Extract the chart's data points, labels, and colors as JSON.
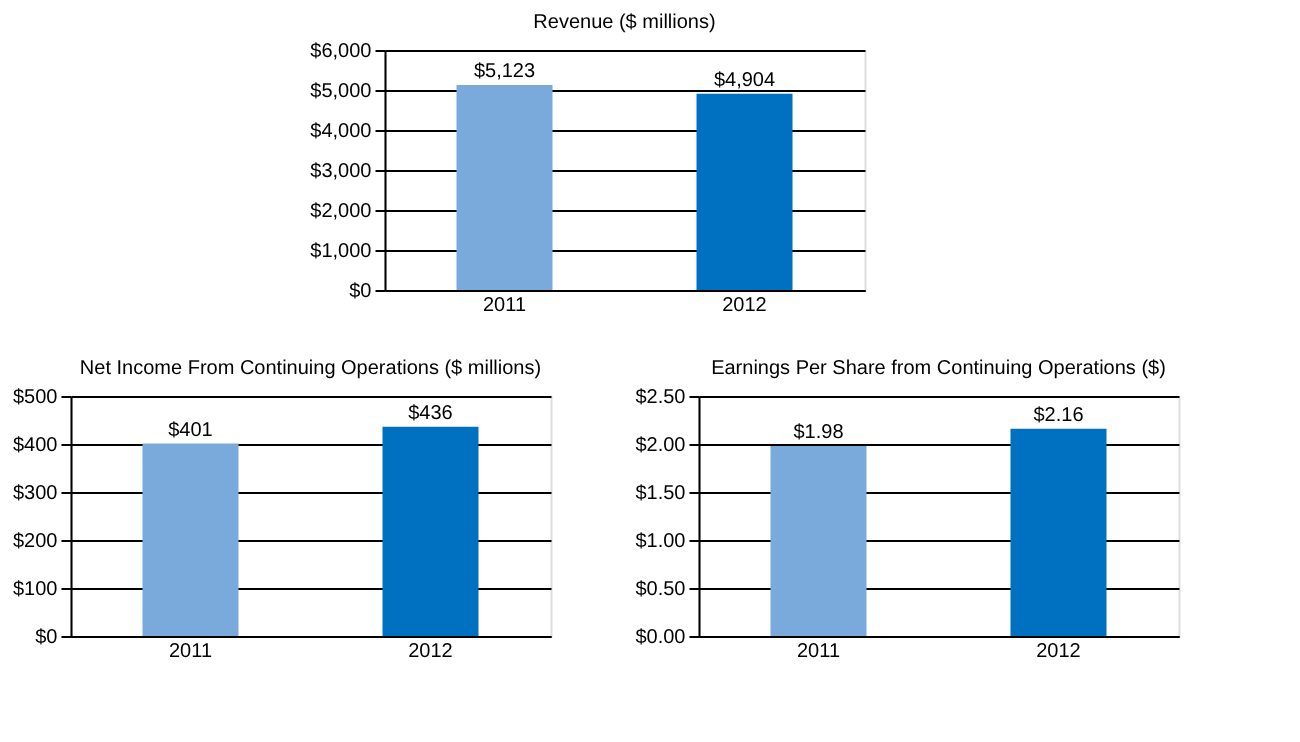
{
  "chart_data": [
    {
      "type": "bar",
      "title": "Revenue ($ millions)",
      "categories": [
        "2011",
        "2012"
      ],
      "values": [
        5123,
        4904
      ],
      "colors": [
        "#7aaadc",
        "#0070c0"
      ],
      "value_labels": [
        "$5,123",
        "$4,904"
      ],
      "ylim": [
        0,
        6000
      ],
      "yticks": [
        {
          "value": 0,
          "label": "$0"
        },
        {
          "value": 1000,
          "label": "$1,000"
        },
        {
          "value": 2000,
          "label": "$2,000"
        },
        {
          "value": 3000,
          "label": "$3,000"
        },
        {
          "value": 4000,
          "label": "$4,000"
        },
        {
          "value": 5000,
          "label": "$5,000"
        },
        {
          "value": 6000,
          "label": "$6,000"
        }
      ],
      "grid": "y"
    },
    {
      "type": "bar",
      "title": "Net Income From Continuing Operations ($ millions)",
      "categories": [
        "2011",
        "2012"
      ],
      "values": [
        401,
        436
      ],
      "colors": [
        "#7aaadc",
        "#0070c0"
      ],
      "value_labels": [
        "$401",
        "$436"
      ],
      "ylim": [
        0,
        500
      ],
      "yticks": [
        {
          "value": 0,
          "label": "$0"
        },
        {
          "value": 100,
          "label": "$100"
        },
        {
          "value": 200,
          "label": "$200"
        },
        {
          "value": 300,
          "label": "$300"
        },
        {
          "value": 400,
          "label": "$400"
        },
        {
          "value": 500,
          "label": "$500"
        }
      ],
      "grid": "y"
    },
    {
      "type": "bar",
      "title": "Earnings Per Share from Continuing Operations ($)",
      "categories": [
        "2011",
        "2012"
      ],
      "values": [
        1.98,
        2.16
      ],
      "colors": [
        "#7aaadc",
        "#0070c0"
      ],
      "value_labels": [
        "$1.98",
        "$2.16"
      ],
      "ylim": [
        0,
        2.5
      ],
      "yticks": [
        {
          "value": 0,
          "label": "$0.00"
        },
        {
          "value": 0.5,
          "label": "$0.50"
        },
        {
          "value": 1,
          "label": "$1.00"
        },
        {
          "value": 1.5,
          "label": "$1.50"
        },
        {
          "value": 2,
          "label": "$2.00"
        },
        {
          "value": 2.5,
          "label": "$2.50"
        }
      ],
      "grid": "y"
    }
  ]
}
